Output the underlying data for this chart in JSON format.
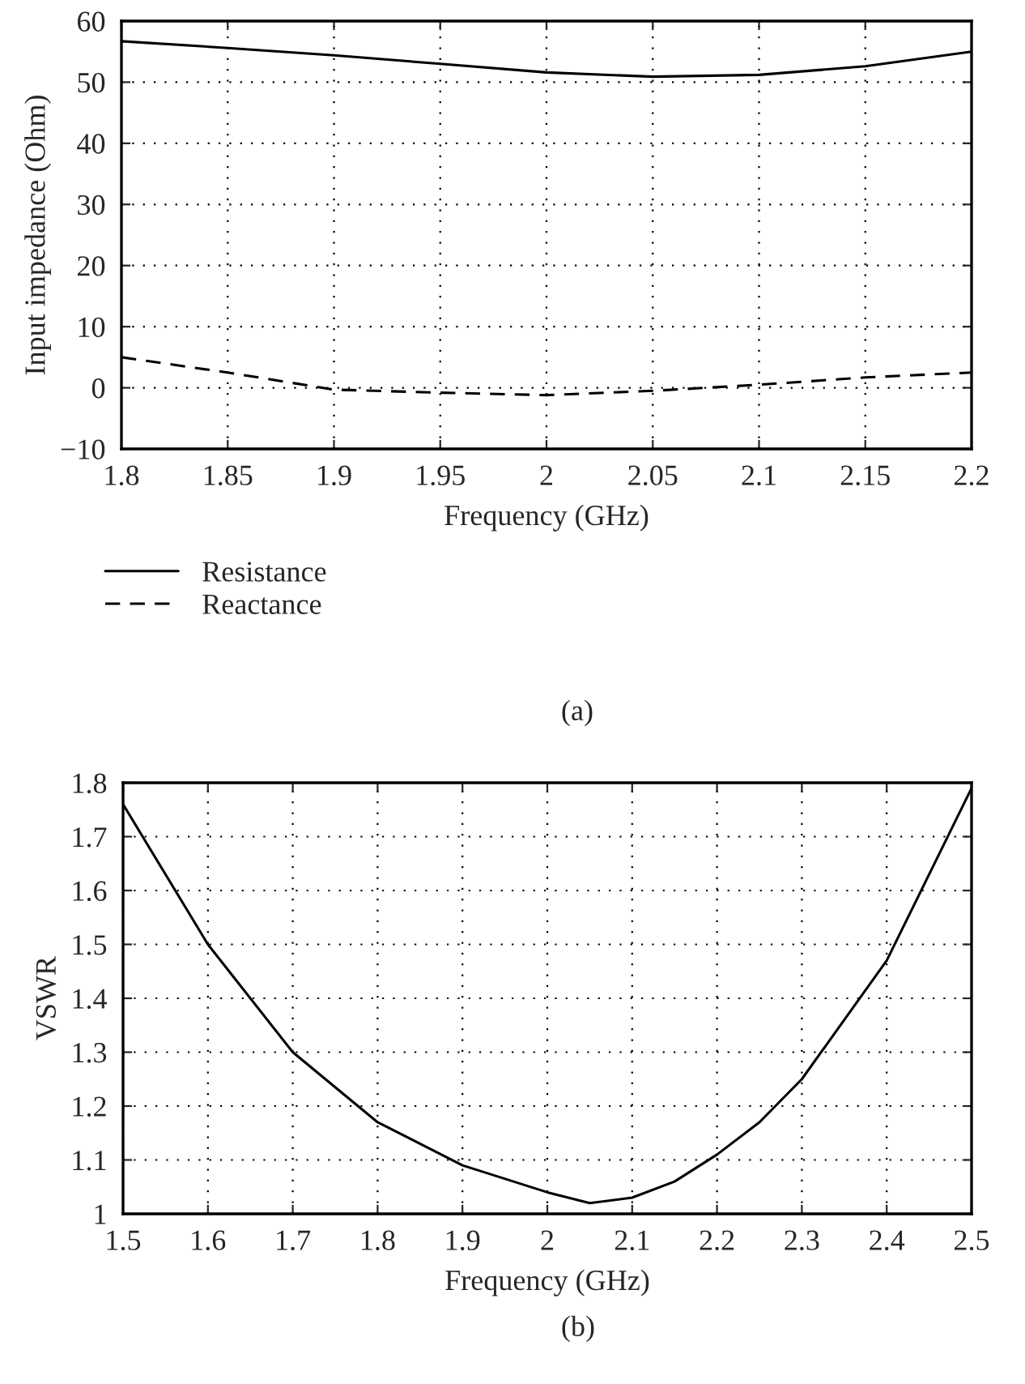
{
  "chart_data": [
    {
      "type": "line",
      "xlabel": "Frequency (GHz)",
      "ylabel": "Input impedance (Ohm)",
      "x": [
        1.8,
        1.85,
        1.9,
        1.95,
        2.0,
        2.05,
        2.1,
        2.15,
        2.2
      ],
      "series": [
        {
          "name": "Resistance",
          "color": "#000000",
          "line_style": "solid",
          "values": [
            56.7,
            55.6,
            54.4,
            53.0,
            51.6,
            50.9,
            51.2,
            52.6,
            55.0
          ]
        },
        {
          "name": "Reactance",
          "color": "#000000",
          "line_style": "dashed",
          "values": [
            5,
            2.5,
            -0.3,
            -0.8,
            -1.2,
            -0.5,
            0.5,
            1.7,
            2.5
          ]
        }
      ],
      "xlim": [
        1.8,
        2.2
      ],
      "xticks": [
        1.8,
        1.85,
        1.9,
        1.95,
        2,
        2.05,
        2.1,
        2.15,
        2.2
      ],
      "ylim": [
        -10,
        60
      ],
      "yticks": [
        {
          "value": -10,
          "label": "−10"
        },
        0,
        10,
        20,
        30,
        40,
        50,
        60
      ],
      "grid": true,
      "legend": "bottom left",
      "annotations": [
        "(a)"
      ]
    },
    {
      "type": "line",
      "xlabel": "Frequency (GHz)",
      "ylabel": "VSWR",
      "x": [
        1.5,
        1.6,
        1.7,
        1.8,
        1.9,
        2.0,
        2.05,
        2.1,
        2.15,
        2.2,
        2.25,
        2.3,
        2.4,
        2.5
      ],
      "series": [
        {
          "color": "#000000",
          "values": [
            1.76,
            1.5,
            1.3,
            1.17,
            1.09,
            1.04,
            1.02,
            1.03,
            1.06,
            1.11,
            1.17,
            1.25,
            1.47,
            1.79
          ]
        }
      ],
      "xlim": [
        1.5,
        2.5
      ],
      "xticks": [
        1.5,
        1.6,
        1.7,
        1.8,
        1.9,
        2,
        2.1,
        2.2,
        2.3,
        2.4,
        2.5
      ],
      "ylim": [
        1,
        1.8
      ],
      "yticks": [
        1,
        1.1,
        1.2,
        1.3,
        1.4,
        1.5,
        1.6,
        1.7,
        1.8
      ],
      "grid": true,
      "annotations": [
        "(b)"
      ]
    }
  ]
}
